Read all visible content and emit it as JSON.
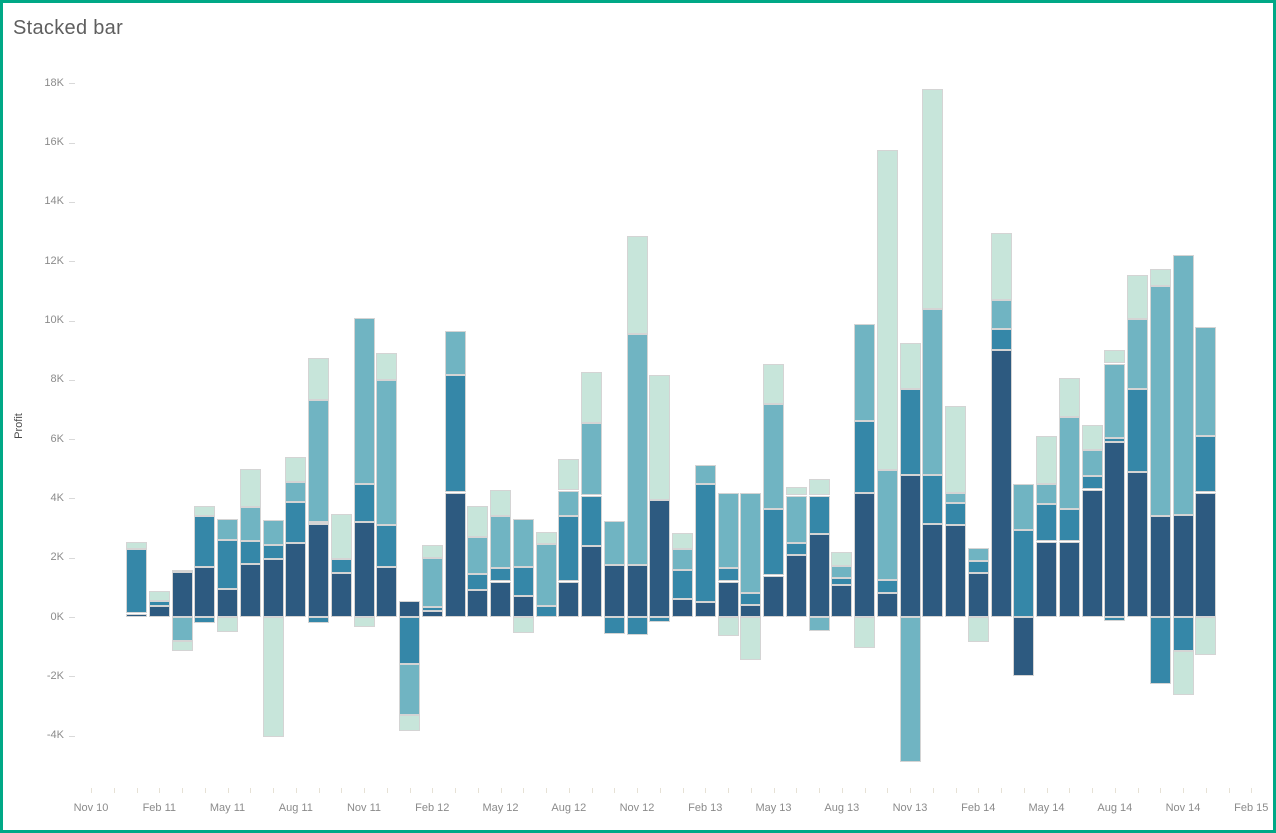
{
  "title": "Stacked bar",
  "y_axis_title": "Profit",
  "frame_color": "#00a886",
  "chart_data": {
    "type": "bar",
    "stacked": true,
    "title": "Stacked bar",
    "ylabel": "Profit",
    "xlabel": "",
    "grid": false,
    "legend": "none",
    "ylim": [
      -5.73,
      19.19
    ],
    "y_ticks": [
      {
        "label": "18K",
        "v": 18
      },
      {
        "label": "16K",
        "v": 16
      },
      {
        "label": "14K",
        "v": 14
      },
      {
        "label": "12K",
        "v": 12
      },
      {
        "label": "10K",
        "v": 10
      },
      {
        "label": "8K",
        "v": 8
      },
      {
        "label": "6K",
        "v": 6
      },
      {
        "label": "4K",
        "v": 4
      },
      {
        "label": "2K",
        "v": 2
      },
      {
        "label": "0K",
        "v": 0
      },
      {
        "label": "-2K",
        "v": -2
      },
      {
        "label": "-4K",
        "v": -4
      }
    ],
    "x_tick_labels": [
      "Nov 10",
      "Feb 11",
      "May 11",
      "Aug 11",
      "Nov 11",
      "Feb 12",
      "May 12",
      "Aug 12",
      "Nov 12",
      "Feb 13",
      "May 13",
      "Aug 13",
      "Nov 13",
      "Feb 14",
      "May 14",
      "Aug 14",
      "Nov 14",
      "Feb 15"
    ],
    "x_tick_month_step": 3,
    "axis_month_count": 52,
    "first_bar_month_index": 2,
    "series": [
      {
        "key": "series-1",
        "color": "#2d5a80",
        "stack_order": "bottom"
      },
      {
        "key": "series-2",
        "color": "#3587a8",
        "stack_order": "second"
      },
      {
        "key": "series-3",
        "color": "#70b4c2",
        "stack_order": "third"
      },
      {
        "key": "series-4",
        "color": "#c7e5da",
        "stack_order": "top"
      }
    ],
    "unit": "K (thousands, Profit)",
    "bars": [
      {
        "m": "Jan 11",
        "pos": [
          0.12,
          2.18,
          0,
          0.22
        ],
        "neg": [
          0,
          0,
          0,
          0
        ]
      },
      {
        "m": "Feb 11",
        "pos": [
          0.37,
          0.16,
          0,
          0.34
        ],
        "neg": [
          0,
          0,
          0,
          0
        ]
      },
      {
        "m": "Mar 11",
        "pos": [
          1.53,
          0.07,
          0,
          0
        ],
        "neg": [
          0,
          0,
          0.82,
          0.31
        ]
      },
      {
        "m": "Apr 11",
        "pos": [
          1.7,
          1.7,
          0,
          0.35
        ],
        "neg": [
          0,
          0.2,
          0,
          0
        ]
      },
      {
        "m": "May 11",
        "pos": [
          0.95,
          1.66,
          0.7,
          0
        ],
        "neg": [
          0,
          0,
          0,
          0.5
        ]
      },
      {
        "m": "Jun 11",
        "pos": [
          1.8,
          0.76,
          1.14,
          1.3
        ],
        "neg": [
          0,
          0,
          0,
          0
        ]
      },
      {
        "m": "Jul 11",
        "pos": [
          1.96,
          0.46,
          0.84,
          0
        ],
        "neg": [
          0,
          0,
          0,
          4.05
        ]
      },
      {
        "m": "Aug 11",
        "pos": [
          2.5,
          1.37,
          0.69,
          0.83
        ],
        "neg": [
          0,
          0,
          0,
          0
        ]
      },
      {
        "m": "Sep 11",
        "pos": [
          3.15,
          0.06,
          4.1,
          1.42
        ],
        "neg": [
          0,
          0.21,
          0,
          0
        ]
      },
      {
        "m": "Oct 11",
        "pos": [
          1.5,
          0.45,
          0,
          1.52
        ],
        "neg": [
          0,
          0,
          0,
          0
        ]
      },
      {
        "m": "Nov 11",
        "pos": [
          3.2,
          1.3,
          5.6,
          0
        ],
        "neg": [
          0,
          0,
          0,
          0.32
        ]
      },
      {
        "m": "Dec 11",
        "pos": [
          1.7,
          1.4,
          4.9,
          0.9
        ],
        "neg": [
          0,
          0,
          0,
          0
        ]
      },
      {
        "m": "Jan 12",
        "pos": [
          0.55,
          0,
          0,
          0
        ],
        "neg": [
          0,
          1.57,
          1.73,
          0.55
        ]
      },
      {
        "m": "Feb 12",
        "pos": [
          0.2,
          0.15,
          1.65,
          0.44
        ],
        "neg": [
          0,
          0,
          0,
          0
        ]
      },
      {
        "m": "Mar 12",
        "pos": [
          4.2,
          3.95,
          1.5,
          0
        ],
        "neg": [
          0,
          0,
          0,
          0
        ]
      },
      {
        "m": "Apr 12",
        "pos": [
          0.9,
          0.55,
          1.26,
          1.05
        ],
        "neg": [
          0,
          0,
          0,
          0
        ]
      },
      {
        "m": "May 12",
        "pos": [
          1.2,
          0.45,
          1.75,
          0.9
        ],
        "neg": [
          0,
          0,
          0,
          0
        ]
      },
      {
        "m": "Jun 12",
        "pos": [
          0.7,
          1.0,
          1.6,
          0
        ],
        "neg": [
          0,
          0,
          0,
          0.55
        ]
      },
      {
        "m": "Jul 12",
        "pos": [
          0,
          0.36,
          2.1,
          0.42
        ],
        "neg": [
          0,
          0,
          0,
          0
        ]
      },
      {
        "m": "Aug 12",
        "pos": [
          1.2,
          2.22,
          0.85,
          1.07
        ],
        "neg": [
          0,
          0,
          0,
          0
        ]
      },
      {
        "m": "Sep 12",
        "pos": [
          2.4,
          1.7,
          2.45,
          1.7
        ],
        "neg": [
          0,
          0,
          0,
          0
        ]
      },
      {
        "m": "Oct 12",
        "pos": [
          1.75,
          0,
          1.5,
          0
        ],
        "neg": [
          0,
          0.57,
          0,
          0
        ]
      },
      {
        "m": "Nov 12",
        "pos": [
          1.75,
          0,
          7.8,
          3.3
        ],
        "neg": [
          0,
          0.61,
          0,
          0
        ]
      },
      {
        "m": "Dec 12",
        "pos": [
          3.95,
          0,
          0,
          4.2
        ],
        "neg": [
          0,
          0.18,
          0,
          0
        ]
      },
      {
        "m": "Jan 13",
        "pos": [
          0.6,
          1.0,
          0.7,
          0.53
        ],
        "neg": [
          0,
          0,
          0,
          0
        ]
      },
      {
        "m": "Feb 13",
        "pos": [
          0.5,
          4.0,
          0.62,
          0
        ],
        "neg": [
          0,
          0,
          0,
          0
        ]
      },
      {
        "m": "Mar 13",
        "pos": [
          1.2,
          0.45,
          2.55,
          0
        ],
        "neg": [
          0,
          0,
          0,
          0.64
        ]
      },
      {
        "m": "Apr 13",
        "pos": [
          0.4,
          0.4,
          3.4,
          0
        ],
        "neg": [
          0,
          0,
          0,
          1.45
        ]
      },
      {
        "m": "May 13",
        "pos": [
          1.4,
          2.25,
          3.55,
          1.35
        ],
        "neg": [
          0,
          0,
          0,
          0
        ]
      },
      {
        "m": "Jun 13",
        "pos": [
          2.1,
          0.4,
          1.6,
          0.3
        ],
        "neg": [
          0,
          0,
          0,
          0
        ]
      },
      {
        "m": "Jul 13",
        "pos": [
          2.8,
          1.3,
          0,
          0.55
        ],
        "neg": [
          0,
          0,
          0.48,
          0
        ]
      },
      {
        "m": "Aug 13",
        "pos": [
          1.07,
          0.26,
          0.4,
          0.45
        ],
        "neg": [
          0,
          0,
          0,
          0
        ]
      },
      {
        "m": "Sep 13",
        "pos": [
          4.2,
          2.4,
          3.3,
          0
        ],
        "neg": [
          0,
          0,
          0,
          1.06
        ]
      },
      {
        "m": "Oct 13",
        "pos": [
          0.8,
          0.46,
          3.7,
          10.8
        ],
        "neg": [
          0,
          0,
          0,
          0
        ]
      },
      {
        "m": "Nov 13",
        "pos": [
          4.8,
          2.9,
          0,
          1.55
        ],
        "neg": [
          0,
          0,
          4.9,
          0
        ]
      },
      {
        "m": "Dec 13",
        "pos": [
          3.15,
          1.65,
          5.6,
          7.4
        ],
        "neg": [
          0,
          0,
          0,
          0
        ]
      },
      {
        "m": "Jan 14",
        "pos": [
          3.1,
          0.76,
          0.31,
          2.95
        ],
        "neg": [
          0,
          0,
          0,
          0
        ]
      },
      {
        "m": "Feb 14",
        "pos": [
          1.5,
          0.38,
          0.46,
          0
        ],
        "neg": [
          0,
          0,
          0,
          0.83
        ]
      },
      {
        "m": "Mar 14",
        "pos": [
          9.0,
          0.7,
          1.0,
          2.25
        ],
        "neg": [
          0,
          0,
          0,
          0
        ]
      },
      {
        "m": "Apr 14",
        "pos": [
          0,
          2.95,
          1.55,
          0
        ],
        "neg": [
          2.0,
          0,
          0,
          0
        ]
      },
      {
        "m": "May 14",
        "pos": [
          2.55,
          1.25,
          0.7,
          1.6
        ],
        "neg": [
          0,
          0,
          0,
          0
        ]
      },
      {
        "m": "Jun 14",
        "pos": [
          2.55,
          1.1,
          3.1,
          1.3
        ],
        "neg": [
          0,
          0,
          0,
          0
        ]
      },
      {
        "m": "Jul 14",
        "pos": [
          4.3,
          0.47,
          0.85,
          0.85
        ],
        "neg": [
          0,
          0,
          0,
          0
        ]
      },
      {
        "m": "Aug 14",
        "pos": [
          5.9,
          0.15,
          2.5,
          0.45
        ],
        "neg": [
          0,
          0.15,
          0,
          0
        ]
      },
      {
        "m": "Sep 14",
        "pos": [
          4.9,
          2.8,
          2.35,
          1.5
        ],
        "neg": [
          0,
          0,
          0,
          0
        ]
      },
      {
        "m": "Oct 14",
        "pos": [
          3.4,
          0,
          7.75,
          0.6
        ],
        "neg": [
          0,
          2.26,
          0,
          0
        ]
      },
      {
        "m": "Nov 14",
        "pos": [
          3.45,
          0,
          8.75,
          0
        ],
        "neg": [
          0,
          1.14,
          0,
          1.48
        ]
      },
      {
        "m": "Dec 14",
        "pos": [
          4.2,
          1.9,
          3.7,
          0
        ],
        "neg": [
          0,
          0,
          0,
          1.27
        ]
      }
    ]
  }
}
